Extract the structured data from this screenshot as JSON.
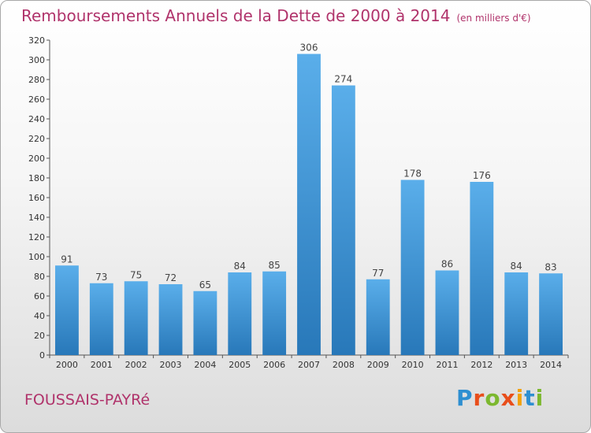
{
  "header": {
    "title": "Remboursements Annuels de la Dette de 2000 à 2014",
    "unit": "(en milliers d'€)"
  },
  "footer": {
    "place": "FOUSSAIS-PAYRé",
    "logo": "Proxiti"
  },
  "colors": {
    "bar_top": "#5aaeea",
    "bar_bottom": "#2878b9",
    "title": "#b0336b",
    "logo": [
      "#2e8fd1",
      "#e84e1b",
      "#7cb82f",
      "#e84e1b",
      "#f2a20c",
      "#2e8fd1",
      "#7cb82f"
    ]
  },
  "chart_data": {
    "type": "bar",
    "title": "Remboursements Annuels de la Dette de 2000 à 2014",
    "subtitle": "(en milliers d'€)",
    "xlabel": "",
    "ylabel": "",
    "categories": [
      "2000",
      "2001",
      "2002",
      "2003",
      "2004",
      "2005",
      "2006",
      "2007",
      "2008",
      "2009",
      "2010",
      "2011",
      "2012",
      "2013",
      "2014"
    ],
    "values": [
      91,
      73,
      75,
      72,
      65,
      84,
      85,
      306,
      274,
      77,
      178,
      86,
      176,
      84,
      83
    ],
    "ylim": [
      0,
      320
    ],
    "ytick_step": 20,
    "grid": false,
    "data_labels": true
  }
}
